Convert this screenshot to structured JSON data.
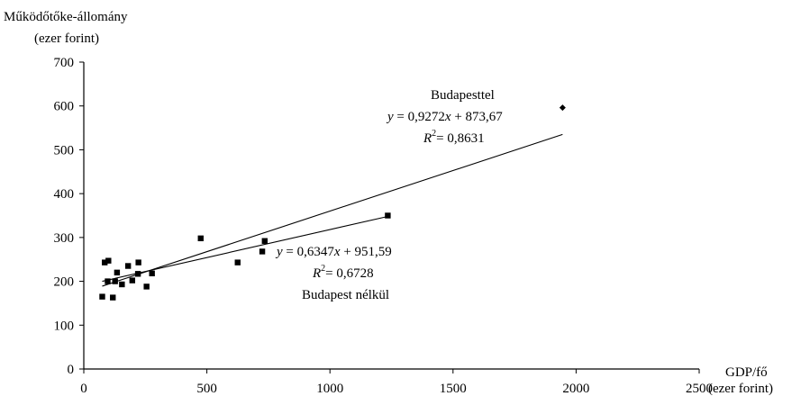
{
  "chart_data": {
    "type": "scatter",
    "ylabel_line1": "Működőtőke-állomány",
    "ylabel_line2": "(ezer forint)",
    "xlabel_line1": "GDP/fő",
    "xlabel_line2": "(ezer forint)",
    "xlim": [
      0,
      2500
    ],
    "ylim": [
      0,
      700
    ],
    "xticks": [
      "0",
      "500",
      "1000",
      "1500",
      "2000",
      "2500"
    ],
    "yticks": [
      "0",
      "100",
      "200",
      "300",
      "400",
      "500",
      "600",
      "700"
    ],
    "xtick_values": [
      0,
      500,
      1000,
      1500,
      2000,
      2500
    ],
    "ytick_values": [
      0,
      100,
      200,
      300,
      400,
      500,
      600,
      700
    ],
    "grid": false,
    "series": [
      {
        "marker": "square",
        "points": [
          [
            75,
            165
          ],
          [
            85,
            243
          ],
          [
            97,
            200
          ],
          [
            100,
            247
          ],
          [
            118,
            163
          ],
          [
            127,
            200
          ],
          [
            135,
            220
          ],
          [
            155,
            193
          ],
          [
            180,
            235
          ],
          [
            197,
            202
          ],
          [
            220,
            217
          ],
          [
            222,
            243
          ],
          [
            255,
            188
          ],
          [
            277,
            218
          ],
          [
            475,
            298
          ],
          [
            625,
            243
          ],
          [
            725,
            268
          ],
          [
            735,
            292
          ],
          [
            1235,
            350
          ]
        ]
      },
      {
        "marker": "diamond",
        "points": [
          [
            1945,
            596
          ]
        ]
      }
    ],
    "trendlines": [
      {
        "x": [
          75,
          1945
        ],
        "y": [
          189,
          535
        ],
        "annotation": {
          "name": "Budapesttel",
          "eq_y": "y",
          "eq_equals": "= 0,9272",
          "eq_x": "x",
          "eq_rest": "+ 873,67",
          "r_R": "R",
          "r_sup": "2",
          "r_rest": "= 0,8631"
        }
      },
      {
        "x": [
          75,
          1235
        ],
        "y": [
          200,
          348
        ],
        "annotation": {
          "name": "Budapest nélkül",
          "eq_y": "y",
          "eq_equals": "= 0,6347",
          "eq_x": "x",
          "eq_rest": "+ 951,59",
          "r_R": "R",
          "r_sup": "2",
          "r_rest": "= 0,6728"
        }
      }
    ]
  }
}
